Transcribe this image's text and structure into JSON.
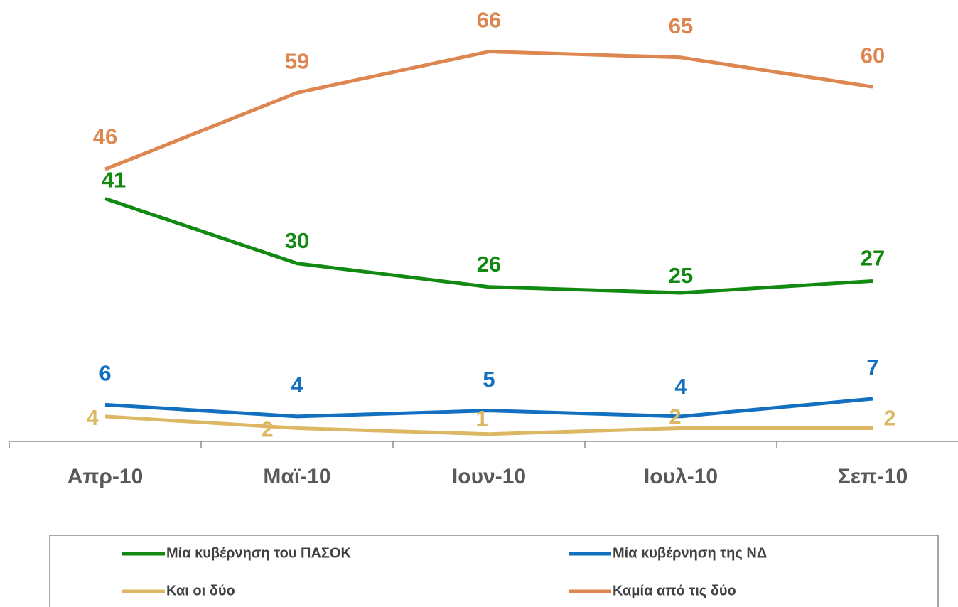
{
  "chart_data": {
    "type": "line",
    "categories": [
      "Απρ-10",
      "Μαϊ-10",
      "Ιουν-10",
      "Ιουλ-10",
      "Σεπ-10"
    ],
    "series": [
      {
        "name": "Μία κυβέρνηση του ΠΑΣΟΚ",
        "color": "#128a12",
        "values": [
          41,
          30,
          26,
          25,
          27
        ]
      },
      {
        "name": "Μία κυβέρνηση της ΝΔ",
        "color": "#1370c0",
        "values": [
          6,
          4,
          5,
          4,
          7
        ]
      },
      {
        "name": "Και οι δύο",
        "color": "#dcb865",
        "values": [
          4,
          2,
          1,
          2,
          2
        ]
      },
      {
        "name": "Καμία από τις δύο",
        "color": "#de8650",
        "values": [
          46,
          59,
          66,
          65,
          60
        ]
      }
    ],
    "ylim": [
      0,
      75
    ],
    "legend": "bottom"
  }
}
